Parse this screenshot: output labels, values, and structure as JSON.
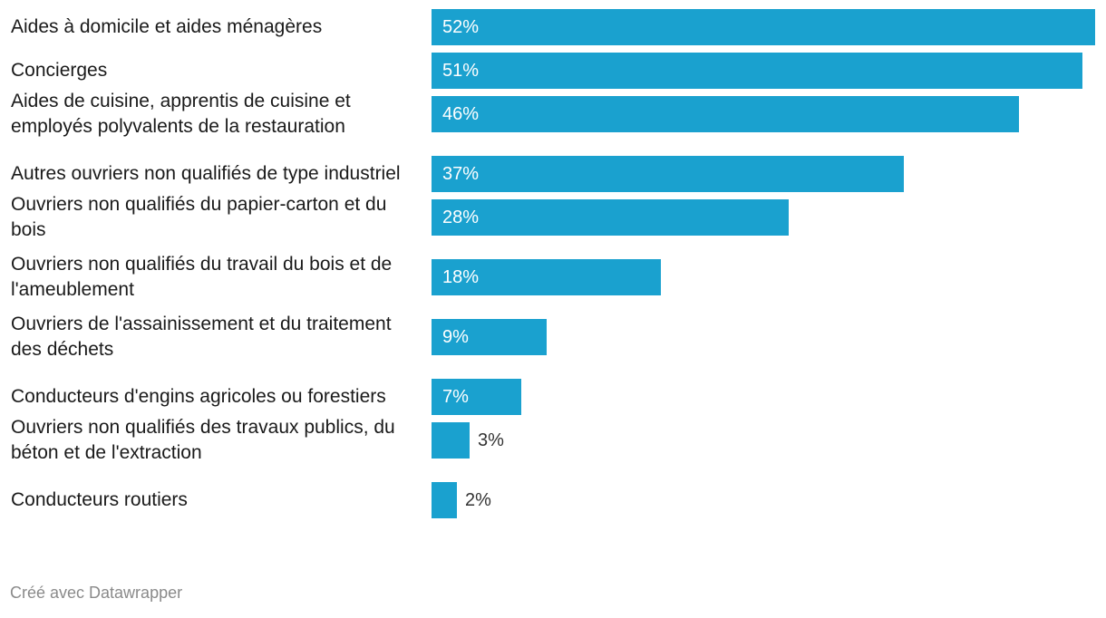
{
  "chart_data": {
    "type": "bar",
    "orientation": "horizontal",
    "categories": [
      "Aides à domicile et aides ménagères",
      "Concierges",
      "Aides de cuisine, apprentis de cuisine et employés polyvalents de la restauration",
      "Autres ouvriers non qualifiés de type industriel",
      "Ouvriers non qualifiés du papier-carton et du bois",
      "Ouvriers non qualifiés du travail du bois et de l'ameublement",
      "Ouvriers de l'assainissement et du traitement des déchets",
      "Conducteurs d'engins agricoles ou forestiers",
      "Ouvriers non qualifiés des travaux publics, du béton et de l'extraction",
      "Conducteurs routiers"
    ],
    "values": [
      52,
      51,
      46,
      37,
      28,
      18,
      9,
      7,
      3,
      2
    ],
    "value_labels": [
      "52%",
      "51%",
      "46%",
      "37%",
      "28%",
      "18%",
      "9%",
      "7%",
      "3%",
      "2%"
    ],
    "xlim": [
      0,
      52
    ],
    "grid": false,
    "bar_color": "#1aa1cf"
  },
  "footer": {
    "credit": "Créé avec Datawrapper"
  }
}
